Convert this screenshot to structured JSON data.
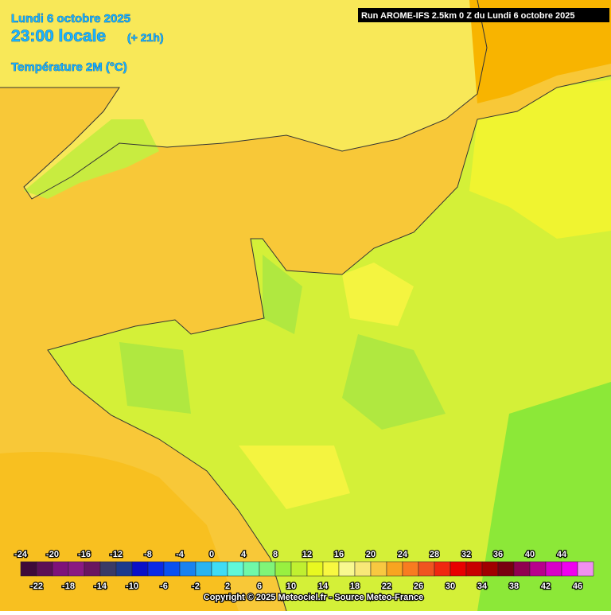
{
  "header": {
    "date": "Lundi 6 octobre 2025",
    "time": "23:00 locale",
    "offset": "(+ 21h)",
    "variable": "Température 2M (°C)"
  },
  "run": "Run AROME-IFS 2.5km 0 Z du Lundi 6 octobre 2025",
  "legend": {
    "labels": [
      -24,
      -22,
      -20,
      -18,
      -16,
      -14,
      -12,
      -10,
      -8,
      -6,
      -4,
      -2,
      0,
      2,
      4,
      6,
      8,
      10,
      12,
      14,
      16,
      18,
      20,
      22,
      24,
      26,
      28,
      30,
      32,
      34,
      36,
      38,
      40,
      42,
      44,
      46
    ],
    "colors": [
      "#3f0a3a",
      "#5c0f55",
      "#7e127a",
      "#8a1a82",
      "#6a1660",
      "#3a3a66",
      "#1c3a8c",
      "#0a10c8",
      "#0a2ae6",
      "#0a50f0",
      "#1a82f0",
      "#2ab4f0",
      "#40dcf4",
      "#60f8d8",
      "#70f8a8",
      "#80f478",
      "#98f040",
      "#c0f030",
      "#e8f820",
      "#f8f840",
      "#f8f890",
      "#f8e878",
      "#f8c840",
      "#f8a420",
      "#f87c20",
      "#f05420",
      "#f02810",
      "#e80000",
      "#c80000",
      "#a00000",
      "#780010",
      "#900050",
      "#b8008c",
      "#d800c8",
      "#f000f0",
      "#f090f0"
    ]
  },
  "copyright": "Copyright © 2025 Meteociel.fr - Source Meteo-France"
}
